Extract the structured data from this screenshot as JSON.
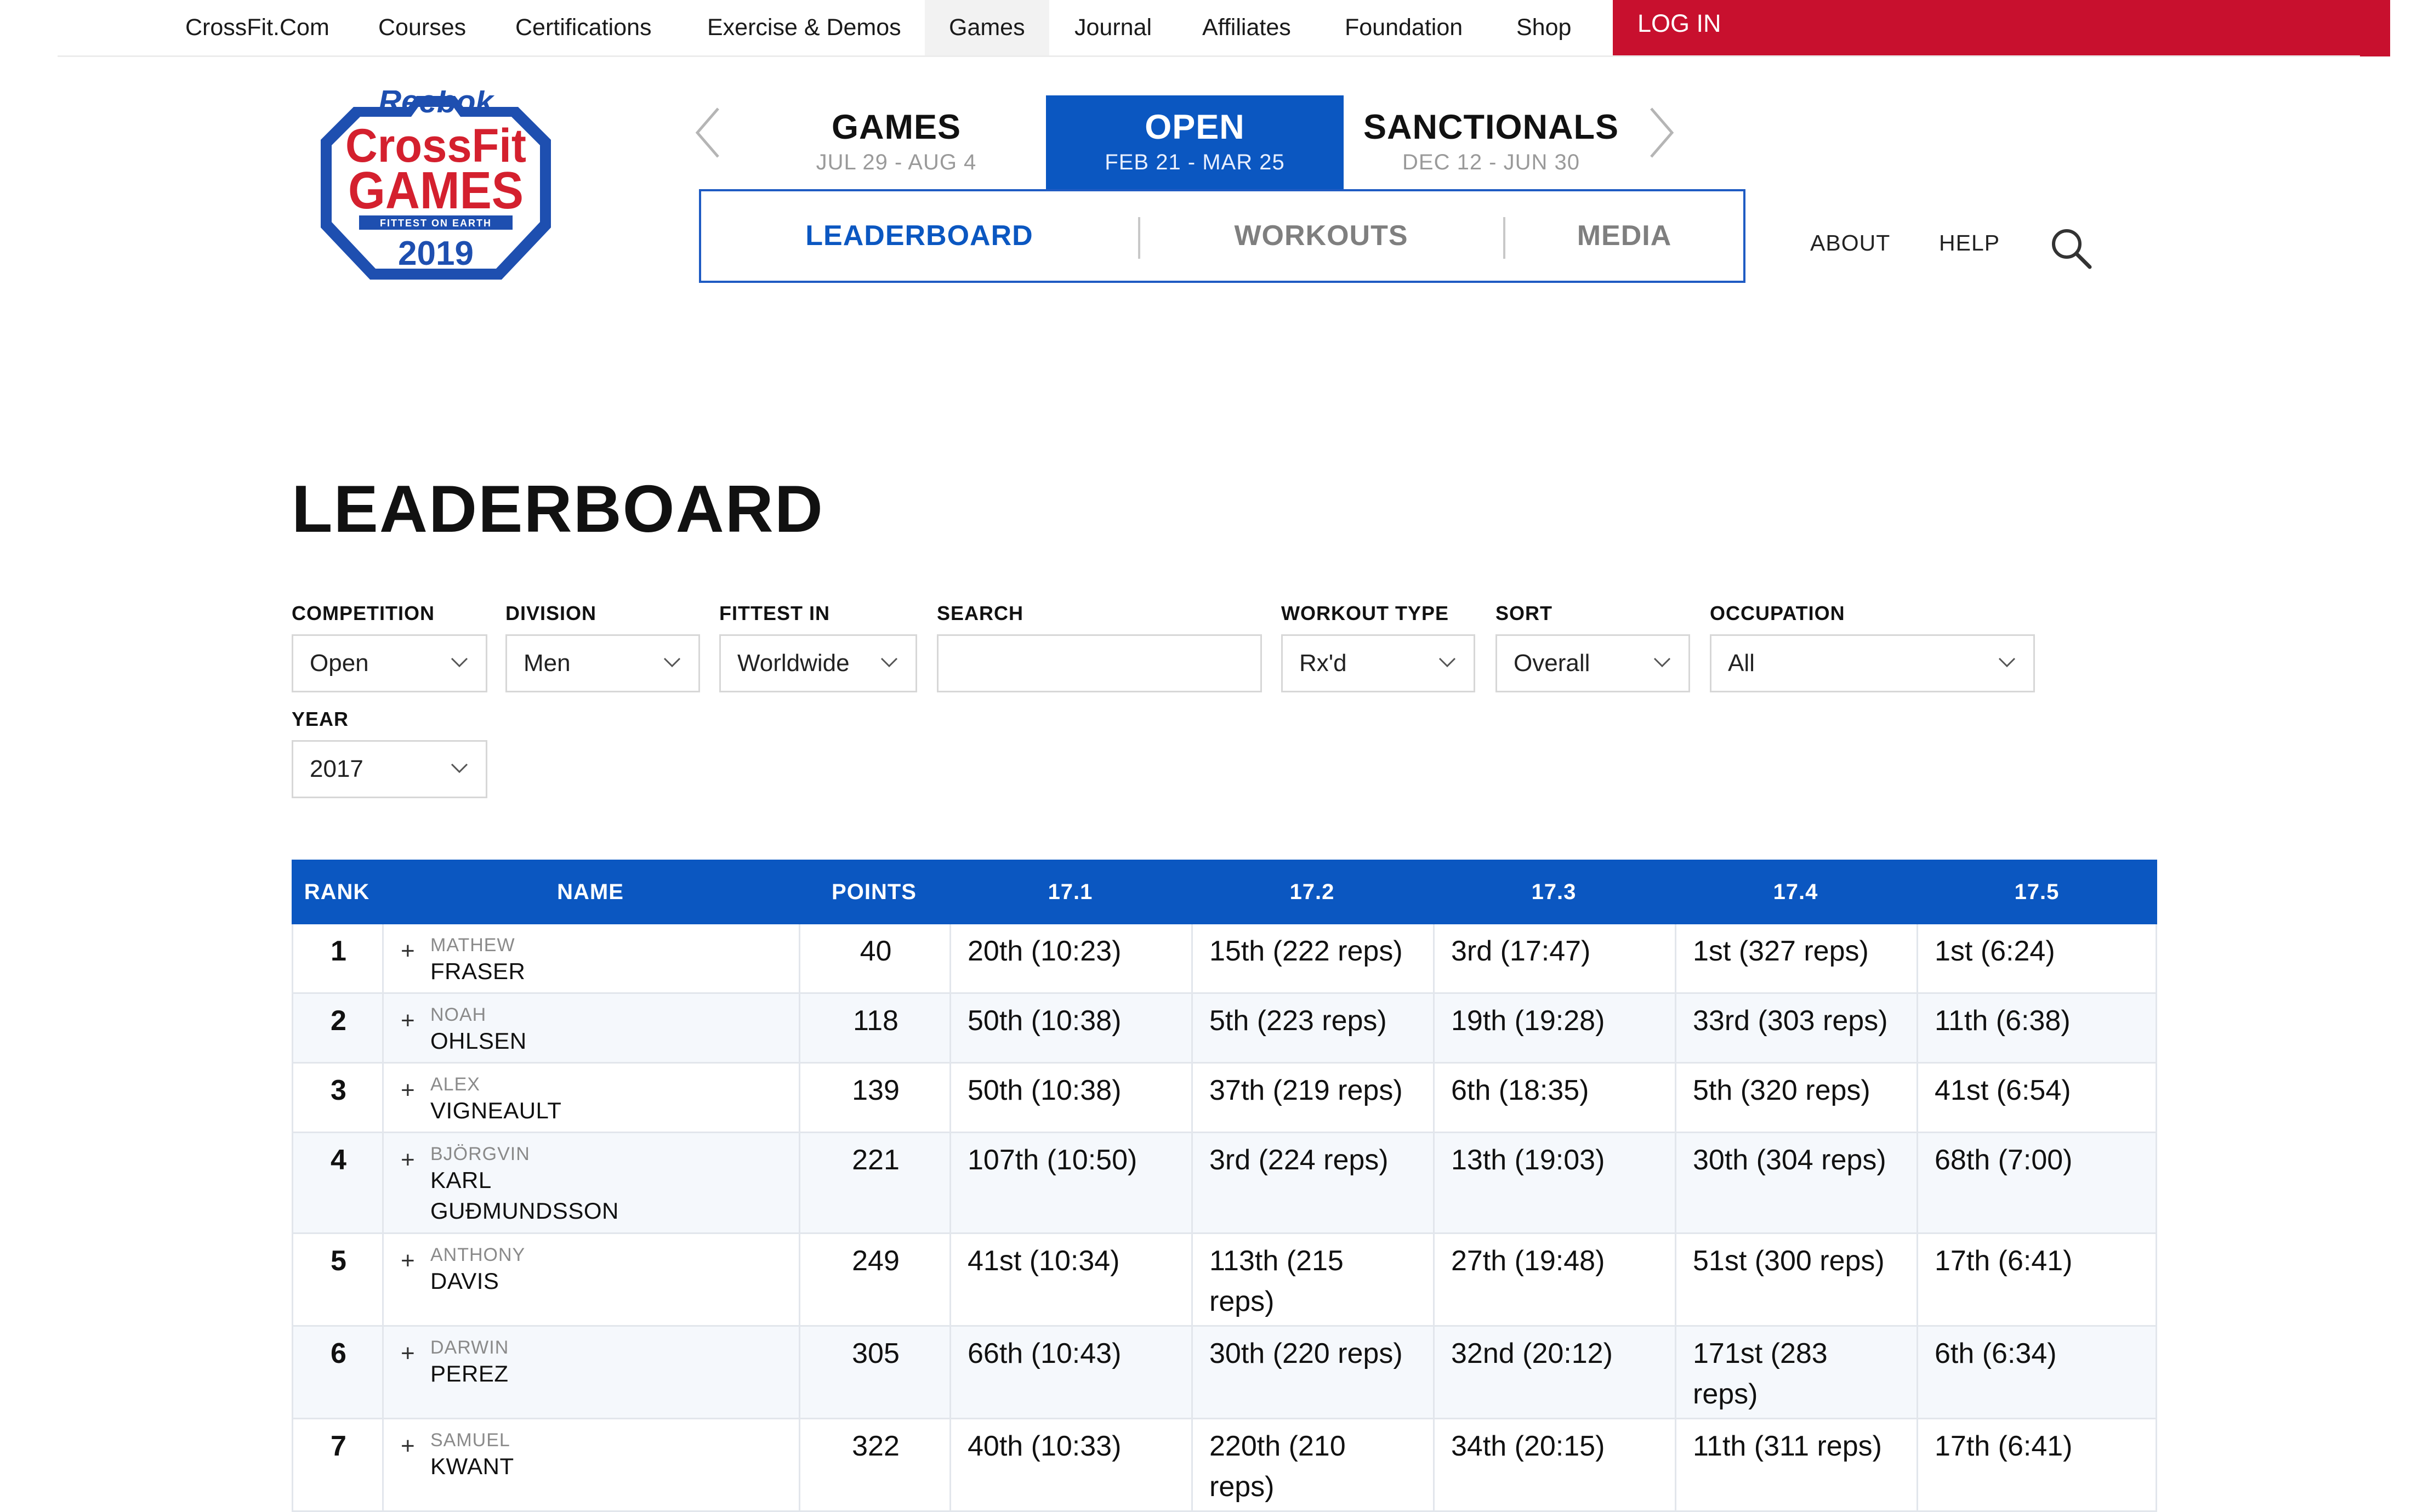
{
  "topnav": {
    "items": [
      "CrossFit.Com",
      "Courses",
      "Certifications",
      "Exercise & Demos",
      "Games",
      "Journal",
      "Affiliates",
      "Foundation",
      "Shop"
    ],
    "login": "LOG IN"
  },
  "logo": {
    "brand": "Reebok",
    "line1": "CrossFit",
    "line2": "GAMES",
    "tagline": "FITTEST ON EARTH",
    "year": "2019"
  },
  "seasons": [
    {
      "title": "GAMES",
      "dates": "JUL 29 - AUG 4"
    },
    {
      "title": "OPEN",
      "dates": "FEB 21 - MAR 25"
    },
    {
      "title": "SANCTIONALS",
      "dates": "DEC 12 - JUN 30"
    }
  ],
  "subtabs": [
    "LEADERBOARD",
    "WORKOUTS",
    "MEDIA"
  ],
  "util": {
    "about": "ABOUT",
    "help": "HELP"
  },
  "page_title": "LEADERBOARD",
  "filters": {
    "competition": {
      "label": "COMPETITION",
      "value": "Open"
    },
    "division": {
      "label": "DIVISION",
      "value": "Men"
    },
    "fittest_in": {
      "label": "FITTEST IN",
      "value": "Worldwide"
    },
    "search": {
      "label": "SEARCH",
      "value": ""
    },
    "workout_type": {
      "label": "WORKOUT TYPE",
      "value": "Rx'd"
    },
    "sort": {
      "label": "SORT",
      "value": "Overall"
    },
    "occupation": {
      "label": "OCCUPATION",
      "value": "All"
    },
    "year": {
      "label": "YEAR",
      "value": "2017"
    }
  },
  "colors": {
    "brand_blue": "#0b57c1",
    "login_red": "#c8102e"
  },
  "table": {
    "headers": [
      "RANK",
      "NAME",
      "POINTS",
      "17.1",
      "17.2",
      "17.3",
      "17.4",
      "17.5"
    ],
    "rows": [
      {
        "rank": "1",
        "first": "MATHEW",
        "last": [
          "FRASER"
        ],
        "points": "40",
        "scores": [
          [
            "20th (10:23)"
          ],
          [
            "15th (222 reps)"
          ],
          [
            "3rd (17:47)"
          ],
          [
            "1st (327 reps)"
          ],
          [
            "1st (6:24)"
          ]
        ]
      },
      {
        "rank": "2",
        "first": "NOAH",
        "last": [
          "OHLSEN"
        ],
        "points": "118",
        "scores": [
          [
            "50th (10:38)"
          ],
          [
            "5th (223 reps)"
          ],
          [
            "19th (19:28)"
          ],
          [
            "33rd (303 reps)"
          ],
          [
            "11th (6:38)"
          ]
        ]
      },
      {
        "rank": "3",
        "first": "ALEX",
        "last": [
          "VIGNEAULT"
        ],
        "points": "139",
        "scores": [
          [
            "50th (10:38)"
          ],
          [
            "37th (219 reps)"
          ],
          [
            "6th (18:35)"
          ],
          [
            "5th (320 reps)"
          ],
          [
            "41st (6:54)"
          ]
        ]
      },
      {
        "rank": "4",
        "first": "BJÖRGVIN",
        "last": [
          "KARL",
          "GUÐMUNDSSON"
        ],
        "points": "221",
        "scores": [
          [
            "107th (10:50)"
          ],
          [
            "3rd (224 reps)"
          ],
          [
            "13th (19:03)"
          ],
          [
            "30th (304 reps)"
          ],
          [
            "68th (7:00)"
          ]
        ]
      },
      {
        "rank": "5",
        "first": "ANTHONY",
        "last": [
          "DAVIS"
        ],
        "points": "249",
        "scores": [
          [
            "41st (10:34)"
          ],
          [
            "113th (215",
            "reps)"
          ],
          [
            "27th (19:48)"
          ],
          [
            "51st (300 reps)"
          ],
          [
            "17th (6:41)"
          ]
        ]
      },
      {
        "rank": "6",
        "first": "DARWIN",
        "last": [
          "PEREZ"
        ],
        "points": "305",
        "scores": [
          [
            "66th (10:43)"
          ],
          [
            "30th (220 reps)"
          ],
          [
            "32nd (20:12)"
          ],
          [
            "171st (283",
            "reps)"
          ],
          [
            "6th (6:34)"
          ]
        ]
      },
      {
        "rank": "7",
        "first": "SAMUEL",
        "last": [
          "KWANT"
        ],
        "points": "322",
        "scores": [
          [
            "40th (10:33)"
          ],
          [
            "220th (210",
            "reps)"
          ],
          [
            "34th (20:15)"
          ],
          [
            "11th (311 reps)"
          ],
          [
            "17th (6:41)"
          ]
        ]
      }
    ]
  }
}
